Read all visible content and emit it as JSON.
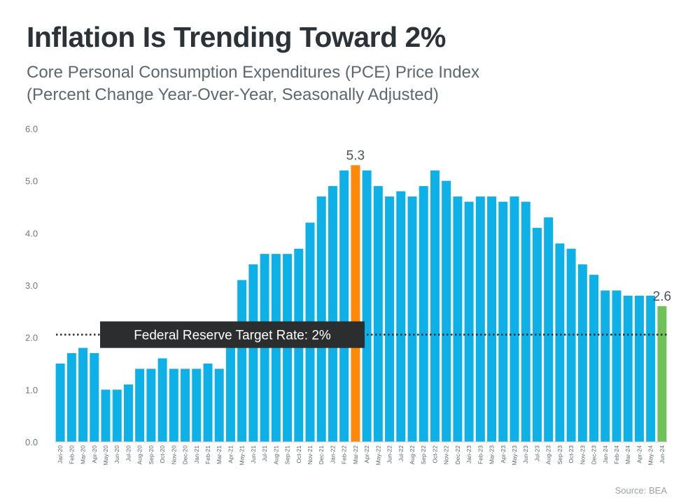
{
  "title": "Inflation Is Trending Toward 2%",
  "subtitle_line1": "Core Personal Consumption Expenditures (PCE) Price Index",
  "subtitle_line2": "(Percent Change Year-Over-Year, Seasonally Adjusted)",
  "source": "Source: BEA",
  "colors": {
    "bar": "#0eb0e8",
    "peak": "#fb8a0a",
    "latest": "#72c05a",
    "reference_label_bg": "#2b2d2f",
    "reference_line": "#2b2d2f"
  },
  "chart_data": {
    "type": "bar",
    "categories": [
      "Jan-20",
      "Feb-20",
      "Mar-20",
      "Apr-20",
      "May-20",
      "Jun-20",
      "Jul-20",
      "Aug-20",
      "Sep-20",
      "Oct-20",
      "Nov-20",
      "Dec-20",
      "Jan-21",
      "Feb-21",
      "Mar-21",
      "Apr-21",
      "May-21",
      "Jun-21",
      "Jul-21",
      "Aug-21",
      "Sep-21",
      "Oct-21",
      "Nov-21",
      "Dec-21",
      "Jan-22",
      "Feb-22",
      "Mar-22",
      "Apr-22",
      "May-22",
      "Jun-22",
      "Jul-22",
      "Aug-22",
      "Sep-22",
      "Oct-22",
      "Nov-22",
      "Dec-22",
      "Jan-23",
      "Feb-23",
      "Mar-23",
      "Apr-23",
      "May-23",
      "Jun-23",
      "Jul-23",
      "Aug-23",
      "Sep-23",
      "Oct-23",
      "Nov-23",
      "Dec-23",
      "Jan-24",
      "Feb-24",
      "Mar-24",
      "Apr-24",
      "May-24",
      "Jun-24"
    ],
    "values": [
      1.5,
      1.7,
      1.8,
      1.7,
      1.0,
      1.0,
      1.1,
      1.4,
      1.4,
      1.6,
      1.4,
      1.4,
      1.4,
      1.5,
      1.4,
      2.0,
      3.1,
      3.4,
      3.6,
      3.6,
      3.6,
      3.7,
      4.2,
      4.7,
      4.9,
      5.2,
      5.3,
      5.2,
      4.9,
      4.7,
      4.8,
      4.7,
      4.9,
      5.2,
      5.0,
      4.7,
      4.6,
      4.7,
      4.7,
      4.6,
      4.7,
      4.6,
      4.1,
      4.3,
      3.8,
      3.7,
      3.4,
      3.2,
      2.9,
      2.9,
      2.8,
      2.8,
      2.8,
      2.6
    ],
    "highlights": [
      {
        "category": "Mar-22",
        "label": "5.3",
        "color_key": "peak"
      },
      {
        "category": "Jun-24",
        "label": "2.6",
        "color_key": "latest"
      }
    ],
    "reference_line": {
      "value": 2.0,
      "label": "Federal Reserve Target Rate: 2%",
      "style": "dotted"
    },
    "ylim": [
      0,
      6
    ],
    "y_ticks": [
      "0.0",
      "1.0",
      "2.0",
      "3.0",
      "4.0",
      "5.0",
      "6.0"
    ],
    "xlabel": "",
    "ylabel": "",
    "grid": false,
    "legend": "none"
  }
}
